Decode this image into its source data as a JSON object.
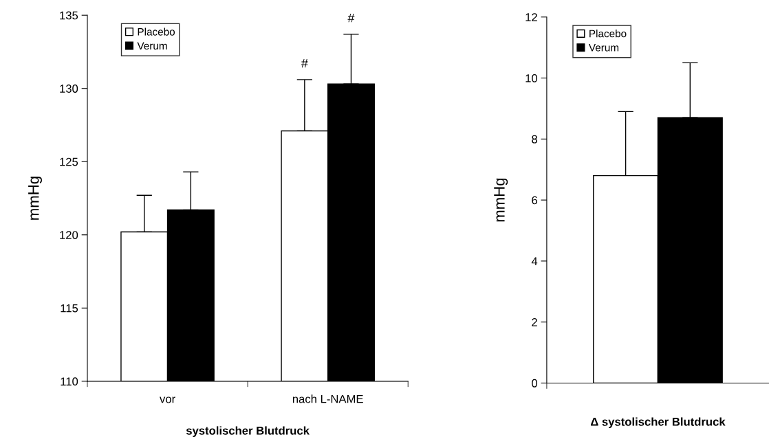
{
  "chart_data": [
    {
      "type": "bar",
      "xlabel": "systolischer Blutdruck",
      "ylabel": "mmHg",
      "categories": [
        "vor",
        "nach L-NAME"
      ],
      "ylim": [
        110,
        135
      ],
      "yticks": [
        110,
        115,
        120,
        125,
        130,
        135
      ],
      "legend": "top left",
      "grid": false,
      "series": [
        {
          "name": "Placebo",
          "color": "#ffffff",
          "values": [
            120.2,
            127.1
          ],
          "errors": [
            [
              120.2,
              122.7
            ],
            [
              127.1,
              130.6
            ]
          ]
        },
        {
          "name": "Verum",
          "color": "#000000",
          "values": [
            121.7,
            130.3
          ],
          "errors": [
            [
              121.7,
              124.3
            ],
            [
              130.3,
              133.7
            ]
          ]
        }
      ],
      "annotations": [
        "#",
        "#"
      ]
    },
    {
      "type": "bar",
      "xlabel": "Δ systolischer Blutdruck",
      "ylabel": "mmHg",
      "categories": [
        null
      ],
      "ylim": [
        0,
        12
      ],
      "yticks": [
        0,
        2,
        4,
        6,
        8,
        10,
        12
      ],
      "legend": "top left",
      "grid": false,
      "series": [
        {
          "name": "Placebo",
          "color": "#ffffff",
          "values": [
            6.8
          ],
          "errors": [
            [
              6.8,
              8.9
            ]
          ]
        },
        {
          "name": "Verum",
          "color": "#000000",
          "values": [
            8.7
          ],
          "errors": [
            [
              8.7,
              10.5
            ]
          ]
        }
      ]
    }
  ]
}
